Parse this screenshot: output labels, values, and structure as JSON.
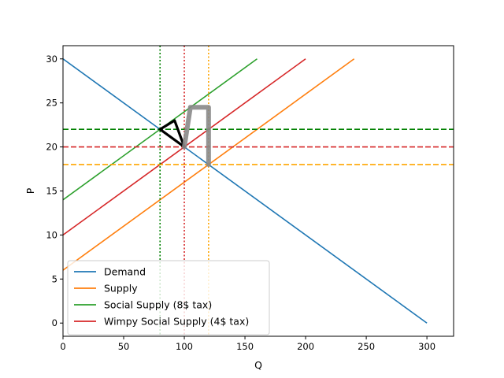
{
  "chart_data": {
    "type": "line",
    "xlabel": "Q",
    "ylabel": "P",
    "xlim": [
      0,
      322
    ],
    "ylim": [
      -1.5,
      31.5
    ],
    "xticks": [
      0,
      50,
      100,
      150,
      200,
      250,
      300
    ],
    "yticks": [
      0,
      5,
      10,
      15,
      20,
      25,
      30
    ],
    "grid": false,
    "legend_position": "lower-left",
    "series": [
      {
        "name": "Demand",
        "color": "#1f77b4",
        "style": "solid",
        "x": [
          0,
          300
        ],
        "y": [
          30,
          0
        ],
        "in_legend": true
      },
      {
        "name": "Supply",
        "color": "#ff7f0e",
        "style": "solid",
        "x": [
          0,
          240
        ],
        "y": [
          6,
          30
        ],
        "in_legend": true
      },
      {
        "name": "Social Supply (8$ tax)",
        "color": "#2ca02c",
        "style": "solid",
        "x": [
          0,
          160
        ],
        "y": [
          14,
          30
        ],
        "in_legend": true
      },
      {
        "name": "Wimpy Social Supply (4$ tax)",
        "color": "#d62728",
        "style": "solid",
        "x": [
          0,
          200
        ],
        "y": [
          10,
          30
        ],
        "in_legend": true
      }
    ],
    "reference_lines": [
      {
        "orientation": "horizontal",
        "value": 22,
        "color": "#008000",
        "style": "dashed"
      },
      {
        "orientation": "horizontal",
        "value": 20,
        "color": "#d62728",
        "style": "dashed"
      },
      {
        "orientation": "horizontal",
        "value": 18,
        "color": "#ffa500",
        "style": "dashed"
      },
      {
        "orientation": "vertical",
        "value": 80,
        "color": "#008000",
        "style": "dotted"
      },
      {
        "orientation": "vertical",
        "value": 100,
        "color": "#d62728",
        "style": "dotted"
      },
      {
        "orientation": "vertical",
        "value": 120,
        "color": "#ffa500",
        "style": "dotted"
      }
    ],
    "annotation_marks": [
      {
        "shape": "triangle",
        "color": "#000000",
        "points": [
          [
            80,
            22
          ],
          [
            100,
            20
          ],
          [
            92,
            23
          ]
        ]
      },
      {
        "shape": "bracket",
        "color": "#888888",
        "points": [
          [
            100,
            20
          ],
          [
            105,
            24.5
          ],
          [
            120,
            18
          ]
        ]
      }
    ]
  }
}
